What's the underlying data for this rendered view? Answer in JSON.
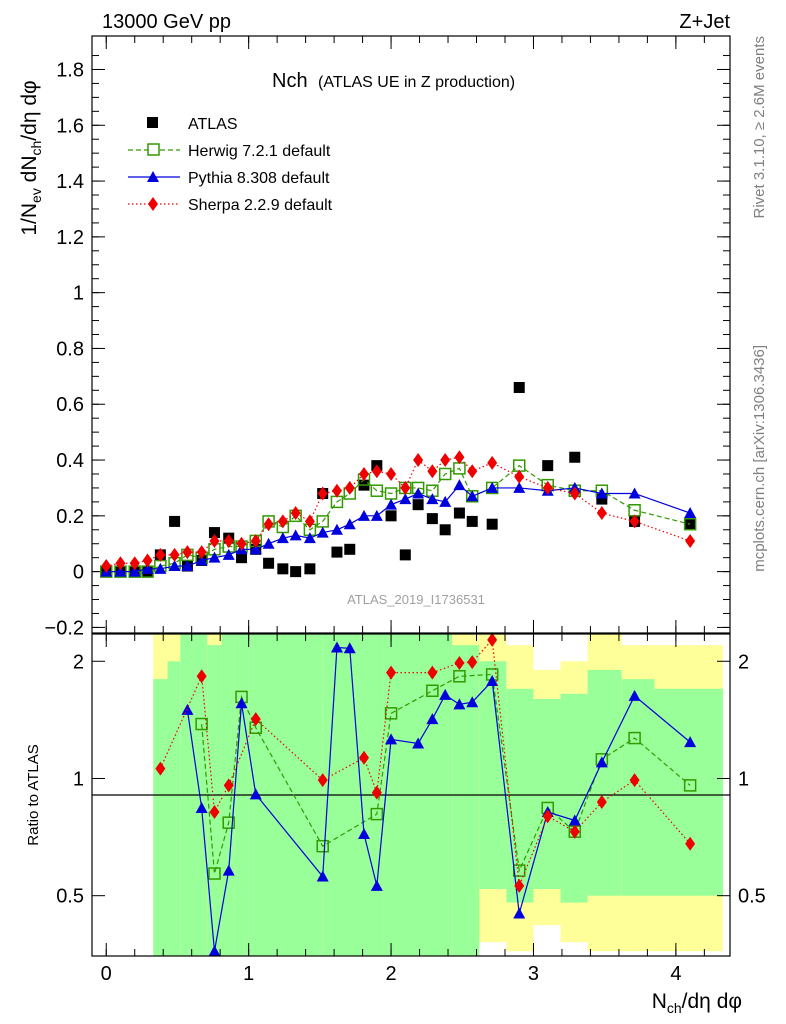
{
  "header": {
    "energy_label": "13000 GeV pp",
    "process_label": "Z+Jet",
    "side_right_top": "Rivet 3.1.10, ≥ 2.6M events",
    "side_right_bottom": "mcplots.cern.ch [arXiv:1306.3436]",
    "watermark": "ATLAS_2019_I1736531"
  },
  "chart_data": [
    {
      "type": "scatter",
      "title": "Nch (ATLAS UE in Z production)",
      "title_main": "Nch",
      "title_sub": "(ATLAS UE in Z production)",
      "ylabel": "1/N_ev dN_ch/dη dφ",
      "ylim": [
        -0.22,
        1.92
      ],
      "xlim": [
        -0.1,
        4.38
      ],
      "y_ticks": [
        "-0.2",
        "0",
        "0.2",
        "0.4",
        "0.6",
        "0.8",
        "1",
        "1.2",
        "1.4",
        "1.6",
        "1.8"
      ],
      "legend_position": "top-left",
      "series": [
        {
          "name": "ATLAS",
          "color": "#000000",
          "marker": "square",
          "x": [
            0.0,
            0.1,
            0.2,
            0.29,
            0.38,
            0.48,
            0.57,
            0.67,
            0.76,
            0.86,
            0.95,
            1.05,
            1.14,
            1.24,
            1.33,
            1.43,
            1.52,
            1.62,
            1.71,
            1.81,
            1.9,
            2.0,
            2.1,
            2.19,
            2.29,
            2.38,
            2.48,
            2.57,
            2.71,
            2.9,
            3.1,
            3.29,
            3.48,
            3.71,
            4.1
          ],
          "values": [
            0.0,
            0.0,
            0.0,
            0.0,
            0.06,
            0.18,
            0.02,
            0.04,
            0.14,
            0.12,
            0.05,
            0.08,
            0.03,
            0.01,
            0.0,
            0.01,
            0.28,
            0.07,
            0.08,
            0.31,
            0.38,
            0.2,
            0.06,
            0.24,
            0.19,
            0.15,
            0.21,
            0.18,
            0.17,
            0.66,
            0.38,
            0.41,
            0.26,
            0.18,
            0.17
          ]
        },
        {
          "name": "Herwig 7.2.1 default",
          "color": "#339900",
          "marker": "open-square",
          "line": "dashed",
          "x": [
            0.0,
            0.1,
            0.2,
            0.29,
            0.38,
            0.48,
            0.57,
            0.67,
            0.76,
            0.86,
            0.95,
            1.05,
            1.14,
            1.24,
            1.33,
            1.43,
            1.52,
            1.62,
            1.71,
            1.81,
            1.9,
            2.0,
            2.1,
            2.19,
            2.29,
            2.38,
            2.48,
            2.57,
            2.71,
            2.9,
            3.1,
            3.29,
            3.48,
            3.71,
            4.1
          ],
          "values": [
            0.0,
            0.0,
            0.0,
            0.0,
            0.02,
            0.03,
            0.06,
            0.05,
            0.08,
            0.09,
            0.09,
            0.11,
            0.18,
            0.16,
            0.2,
            0.15,
            0.18,
            0.25,
            0.28,
            0.33,
            0.29,
            0.28,
            0.3,
            0.3,
            0.29,
            0.35,
            0.37,
            0.27,
            0.3,
            0.38,
            0.31,
            0.29,
            0.29,
            0.22,
            0.17
          ]
        },
        {
          "name": "Pythia 8.308 default",
          "color": "#0000dd",
          "marker": "triangle",
          "line": "solid",
          "x": [
            0.0,
            0.1,
            0.2,
            0.29,
            0.38,
            0.48,
            0.57,
            0.67,
            0.76,
            0.86,
            0.95,
            1.05,
            1.14,
            1.24,
            1.33,
            1.43,
            1.52,
            1.62,
            1.71,
            1.81,
            1.9,
            2.0,
            2.1,
            2.19,
            2.29,
            2.38,
            2.48,
            2.57,
            2.71,
            2.9,
            3.1,
            3.29,
            3.48,
            3.71,
            4.1
          ],
          "values": [
            0.0,
            0.0,
            0.0,
            0.01,
            0.01,
            0.02,
            0.02,
            0.04,
            0.05,
            0.06,
            0.08,
            0.08,
            0.1,
            0.12,
            0.13,
            0.12,
            0.14,
            0.15,
            0.17,
            0.2,
            0.2,
            0.24,
            0.26,
            0.28,
            0.26,
            0.25,
            0.31,
            0.27,
            0.3,
            0.3,
            0.29,
            0.3,
            0.28,
            0.28,
            0.21
          ]
        },
        {
          "name": "Sherpa 2.2.9 default",
          "color": "#ee0000",
          "marker": "diamond",
          "line": "dotted",
          "x": [
            0.0,
            0.1,
            0.2,
            0.29,
            0.38,
            0.48,
            0.57,
            0.67,
            0.76,
            0.86,
            0.95,
            1.05,
            1.14,
            1.24,
            1.33,
            1.43,
            1.52,
            1.62,
            1.71,
            1.81,
            1.9,
            2.0,
            2.1,
            2.19,
            2.29,
            2.38,
            2.48,
            2.57,
            2.71,
            2.9,
            3.1,
            3.29,
            3.48,
            3.71,
            4.1
          ],
          "values": [
            0.02,
            0.03,
            0.03,
            0.04,
            0.06,
            0.06,
            0.07,
            0.07,
            0.11,
            0.11,
            0.1,
            0.11,
            0.17,
            0.18,
            0.21,
            0.18,
            0.28,
            0.29,
            0.3,
            0.35,
            0.36,
            0.35,
            0.3,
            0.4,
            0.36,
            0.4,
            0.41,
            0.36,
            0.39,
            0.34,
            0.3,
            0.28,
            0.21,
            0.18,
            0.11
          ]
        }
      ]
    },
    {
      "type": "line",
      "ylabel": "Ratio to ATLAS",
      "xlabel": "N_ch/dη dφ",
      "ylim": [
        0.35,
        2.35
      ],
      "xlim": [
        -0.1,
        4.38
      ],
      "log_scale": true,
      "x_ticks": [
        "0",
        "1",
        "2",
        "3",
        "4"
      ],
      "y_ticks": [
        "0.5",
        "1",
        "2"
      ],
      "reference_line": 1,
      "uncertainty_bands": [
        {
          "x0": 0.33,
          "x1": 0.43,
          "yellow": [
            0.0,
            2.4
          ],
          "green": [
            0.0,
            1.8
          ]
        },
        {
          "x0": 0.43,
          "x1": 0.52,
          "yellow": [
            0.0,
            2.4
          ],
          "green": [
            0.0,
            2.0
          ]
        },
        {
          "x0": 0.52,
          "x1": 0.62,
          "yellow": [
            0.0,
            2.4
          ],
          "green": [
            0.0,
            2.4
          ]
        },
        {
          "x0": 0.62,
          "x1": 0.71,
          "yellow": [
            0.0,
            2.4
          ],
          "green": [
            0.0,
            2.4
          ]
        },
        {
          "x0": 0.71,
          "x1": 0.81,
          "yellow": [
            0.0,
            2.4
          ],
          "green": [
            0.0,
            2.2
          ]
        },
        {
          "x0": 0.81,
          "x1": 0.9,
          "yellow": [
            0.0,
            2.4
          ],
          "green": [
            0.0,
            2.4
          ]
        },
        {
          "x0": 0.9,
          "x1": 1.0,
          "yellow": [
            0.0,
            2.4
          ],
          "green": [
            0.0,
            2.4
          ]
        },
        {
          "x0": 1.0,
          "x1": 1.52,
          "yellow": [
            0.0,
            2.4
          ],
          "green": [
            0.0,
            2.4
          ]
        },
        {
          "x0": 1.52,
          "x1": 1.95,
          "yellow": [
            0.0,
            2.4
          ],
          "green": [
            0.0,
            2.4
          ]
        },
        {
          "x0": 1.95,
          "x1": 2.43,
          "yellow": [
            0.0,
            2.4
          ],
          "green": [
            0.0,
            2.4
          ]
        },
        {
          "x0": 2.43,
          "x1": 2.62,
          "yellow": [
            0.0,
            2.4
          ],
          "green": [
            0.0,
            2.2
          ]
        },
        {
          "x0": 2.62,
          "x1": 2.81,
          "yellow": [
            0.38,
            2.4
          ],
          "green": [
            0.52,
            2.0
          ]
        },
        {
          "x0": 2.81,
          "x1": 3.0,
          "yellow": [
            0.36,
            2.2
          ],
          "green": [
            0.48,
            1.7
          ]
        },
        {
          "x0": 3.0,
          "x1": 3.19,
          "yellow": [
            0.42,
            1.9
          ],
          "green": [
            0.52,
            1.6
          ]
        },
        {
          "x0": 3.19,
          "x1": 3.38,
          "yellow": [
            0.38,
            2.0
          ],
          "green": [
            0.48,
            1.65
          ]
        },
        {
          "x0": 3.38,
          "x1": 3.62,
          "yellow": [
            0.36,
            2.4
          ],
          "green": [
            0.5,
            1.9
          ]
        },
        {
          "x0": 3.62,
          "x1": 3.85,
          "yellow": [
            0.36,
            2.2
          ],
          "green": [
            0.5,
            1.8
          ]
        },
        {
          "x0": 3.85,
          "x1": 4.33,
          "yellow": [
            0.36,
            2.2
          ],
          "green": [
            0.5,
            1.7
          ]
        }
      ],
      "series": [
        {
          "name": "Herwig 7.2.1 default",
          "color": "#339900",
          "marker": "open-square",
          "line": "dashed",
          "x": [
            0.67,
            0.76,
            0.86,
            0.95,
            1.05,
            1.52,
            1.9,
            2.0,
            2.29,
            2.48,
            2.71,
            2.9,
            3.1,
            3.29,
            3.48,
            3.71,
            4.1
          ],
          "values": [
            1.38,
            0.57,
            0.77,
            1.62,
            1.35,
            0.67,
            0.81,
            1.47,
            1.68,
            1.83,
            1.85,
            0.58,
            0.84,
            0.73,
            1.12,
            1.27,
            0.96
          ]
        },
        {
          "name": "Pythia 8.308 default",
          "color": "#0000dd",
          "marker": "triangle",
          "line": "solid",
          "x": [
            0.57,
            0.67,
            0.76,
            0.86,
            0.95,
            1.05,
            1.52,
            1.62,
            1.71,
            1.81,
            1.9,
            2.0,
            2.19,
            2.29,
            2.38,
            2.48,
            2.57,
            2.71,
            2.9,
            3.1,
            3.29,
            3.48,
            3.71,
            4.1
          ],
          "values": [
            1.5,
            0.84,
            0.36,
            0.58,
            1.56,
            0.91,
            0.56,
            2.17,
            2.16,
            0.72,
            0.53,
            1.26,
            1.23,
            1.42,
            1.64,
            1.55,
            1.57,
            1.78,
            0.45,
            0.82,
            0.78,
            1.1,
            1.63,
            1.24
          ]
        },
        {
          "name": "Sherpa 2.2.9 default",
          "color": "#ee0000",
          "marker": "diamond",
          "line": "dotted",
          "x": [
            0.38,
            0.67,
            0.76,
            0.86,
            1.05,
            1.52,
            1.81,
            1.9,
            2.0,
            2.29,
            2.48,
            2.57,
            2.71,
            2.9,
            3.1,
            3.29,
            3.48,
            3.71,
            4.1
          ],
          "values": [
            1.06,
            1.83,
            0.82,
            0.96,
            1.42,
            0.99,
            1.13,
            0.92,
            1.87,
            1.87,
            1.98,
            1.99,
            2.27,
            0.53,
            0.8,
            0.73,
            0.87,
            0.99,
            0.68
          ]
        }
      ]
    }
  ]
}
